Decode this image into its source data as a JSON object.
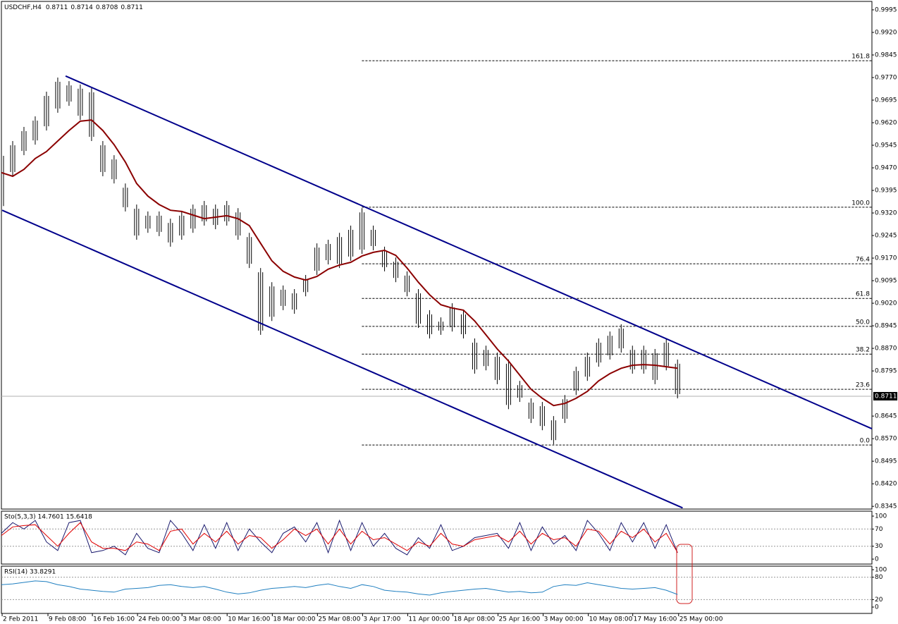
{
  "chart_data": [
    {
      "type": "hlc",
      "symbol": "USDCHF,H4",
      "last_ohlc": [
        0.8711,
        0.8714,
        0.8708,
        0.8711
      ],
      "color": "#000000",
      "x": [
        0,
        2,
        4,
        6,
        8,
        10,
        12,
        14,
        16,
        18,
        20,
        22,
        24,
        26,
        28,
        30,
        32,
        34,
        36,
        38,
        40,
        42,
        44,
        46,
        48,
        50,
        52,
        54,
        56,
        58,
        60,
        62,
        64,
        66,
        68,
        70,
        72,
        74,
        76,
        78,
        80,
        82,
        84,
        86,
        88,
        90,
        92,
        94,
        96,
        98,
        100,
        102,
        104,
        106,
        108,
        110,
        112,
        114,
        116,
        118,
        120
      ],
      "high": [
        0.9524,
        0.9559,
        0.9606,
        0.9641,
        0.9723,
        0.977,
        0.9758,
        0.9747,
        0.9735,
        0.9559,
        0.9512,
        0.9418,
        0.9348,
        0.9325,
        0.9325,
        0.9301,
        0.9325,
        0.9348,
        0.936,
        0.9348,
        0.936,
        0.9336,
        0.9254,
        0.9137,
        0.909,
        0.9079,
        0.9067,
        0.9114,
        0.9219,
        0.9231,
        0.9254,
        0.9278,
        0.9336,
        0.9278,
        0.9208,
        0.9172,
        0.9126,
        0.9067,
        0.8997,
        0.8973,
        0.902,
        0.8997,
        0.8903,
        0.8879,
        0.8856,
        0.8833,
        0.8762,
        0.8704,
        0.8692,
        0.8645,
        0.8715,
        0.8809,
        0.8856,
        0.8903,
        0.8926,
        0.895,
        0.8879,
        0.8879,
        0.8868,
        0.8903,
        0.8833
      ],
      "low": [
        0.9329,
        0.9442,
        0.9512,
        0.9547,
        0.9594,
        0.9653,
        0.9676,
        0.9629,
        0.9559,
        0.9442,
        0.9418,
        0.9325,
        0.9231,
        0.9254,
        0.9243,
        0.9208,
        0.9231,
        0.9254,
        0.9278,
        0.9266,
        0.9278,
        0.9231,
        0.9137,
        0.8915,
        0.8961,
        0.8997,
        0.8985,
        0.9043,
        0.9114,
        0.9149,
        0.9137,
        0.9161,
        0.9184,
        0.9196,
        0.9126,
        0.909,
        0.9043,
        0.8938,
        0.8903,
        0.8915,
        0.8926,
        0.8903,
        0.8786,
        0.8797,
        0.8751,
        0.8668,
        0.8692,
        0.8622,
        0.8598,
        0.8551,
        0.8622,
        0.8715,
        0.8762,
        0.8809,
        0.8833,
        0.8856,
        0.8786,
        0.8786,
        0.8751,
        0.8797,
        0.8704
      ],
      "moving_average": {
        "color": "#8b0000",
        "values": [
          0.9454,
          0.9442,
          0.9465,
          0.9501,
          0.9524,
          0.9559,
          0.9594,
          0.9625,
          0.9629,
          0.9594,
          0.9547,
          0.9489,
          0.9418,
          0.9376,
          0.9348,
          0.9329,
          0.9325,
          0.9313,
          0.9301,
          0.9306,
          0.9311,
          0.9301,
          0.9278,
          0.9219,
          0.9161,
          0.9126,
          0.9107,
          0.9097,
          0.9109,
          0.9133,
          0.9147,
          0.9156,
          0.9177,
          0.9189,
          0.9196,
          0.9179,
          0.9137,
          0.909,
          0.9048,
          0.9015,
          0.9004,
          0.8997,
          0.8961,
          0.8915,
          0.8868,
          0.8828,
          0.8781,
          0.8734,
          0.8704,
          0.868,
          0.8687,
          0.8704,
          0.8727,
          0.8762,
          0.8786,
          0.8804,
          0.8814,
          0.8816,
          0.8814,
          0.8809,
          0.8804
        ]
      },
      "trendlines": [
        {
          "color": "#00008b",
          "x": [
            11.39,
            154.5
          ],
          "y": [
            0.9775,
            0.8603
          ]
        },
        {
          "color": "#00008b",
          "x": [
            0.13,
            120.9
          ],
          "y": [
            0.9329,
            0.834
          ]
        }
      ],
      "fib_levels": {
        "x_start": 63.98,
        "levels": [
          {
            "label": "161.8",
            "price": 0.9826
          },
          {
            "label": "100.0",
            "price": 0.9339
          },
          {
            "label": "76.4",
            "price": 0.9151
          },
          {
            "label": "61.8",
            "price": 0.9036
          },
          {
            "label": "50.0",
            "price": 0.8943
          },
          {
            "label": "38.2",
            "price": 0.8851
          },
          {
            "label": "23.6",
            "price": 0.8734
          },
          {
            "label": "0.0",
            "price": 0.8549
          }
        ]
      },
      "last_price": 0.8711,
      "xlim": [
        0,
        154.5
      ],
      "ylim": [
        0.8336,
        1.0023
      ],
      "yticks": [
        0.9995,
        {
          "value": 0.992,
          "label": "0.9920"
        },
        0.9845,
        {
          "value": 0.977,
          "label": "0.9770"
        },
        0.9695,
        {
          "value": 0.962,
          "label": "0.9620"
        },
        0.9545,
        {
          "value": 0.947,
          "label": "0.9470"
        },
        0.9395,
        {
          "value": 0.932,
          "label": "0.9320"
        },
        0.9245,
        {
          "value": 0.917,
          "label": "0.9170"
        },
        0.9095,
        {
          "value": 0.902,
          "label": "0.9020"
        },
        0.8945,
        {
          "value": 0.887,
          "label": "0.8870"
        },
        0.8795,
        0.8645,
        {
          "value": 0.857,
          "label": "0.8570"
        },
        0.8495,
        {
          "value": 0.842,
          "label": "0.8420"
        },
        0.8345
      ]
    },
    {
      "type": "line",
      "label": "Sto(5,3,3) 14.7601 15.6418",
      "series": [
        {
          "color": "#1a1a6e",
          "values": [
            60,
            85,
            70,
            90,
            40,
            20,
            85,
            90,
            15,
            20,
            30,
            10,
            60,
            25,
            15,
            90,
            60,
            20,
            80,
            25,
            85,
            20,
            70,
            40,
            15,
            60,
            75,
            40,
            85,
            15,
            90,
            20,
            85,
            30,
            60,
            25,
            10,
            50,
            25,
            80,
            20,
            30,
            50,
            55,
            60,
            25,
            85,
            20,
            75,
            35,
            55,
            20,
            90,
            60,
            20,
            85,
            40,
            85,
            25,
            80,
            14.7601
          ]
        },
        {
          "color": "#e00000",
          "values": [
            55,
            75,
            78,
            80,
            55,
            30,
            60,
            85,
            40,
            25,
            25,
            20,
            40,
            35,
            20,
            65,
            70,
            35,
            60,
            40,
            65,
            35,
            55,
            50,
            25,
            45,
            70,
            55,
            70,
            35,
            70,
            35,
            65,
            45,
            50,
            35,
            20,
            40,
            30,
            60,
            35,
            30,
            45,
            50,
            55,
            40,
            65,
            35,
            60,
            45,
            50,
            30,
            70,
            65,
            35,
            65,
            50,
            70,
            40,
            60,
            15.6418
          ]
        }
      ],
      "xlim": [
        0,
        154.5
      ],
      "ylim": [
        -11.5,
        111.5
      ],
      "yticks": [
        100,
        70,
        30,
        0
      ]
    },
    {
      "type": "line",
      "label": "RSI(14) 33.8291",
      "series": [
        {
          "color": "#1f7fc0",
          "values": [
            60,
            62,
            66,
            70,
            68,
            60,
            55,
            48,
            45,
            42,
            40,
            48,
            50,
            52,
            58,
            60,
            55,
            52,
            55,
            48,
            40,
            35,
            38,
            45,
            50,
            52,
            55,
            52,
            58,
            62,
            55,
            50,
            60,
            55,
            45,
            42,
            40,
            35,
            32,
            38,
            42,
            45,
            48,
            50,
            45,
            40,
            42,
            38,
            40,
            55,
            60,
            58,
            65,
            60,
            55,
            50,
            48,
            50,
            52,
            45,
            33.8291
          ]
        }
      ],
      "xlim": [
        0,
        154.5
      ],
      "ylim": [
        -17,
        109.4
      ],
      "yticks": [
        100,
        80,
        20,
        0
      ],
      "xticks": [
        {
          "value": 0.13,
          "label": "2 Feb 2011"
        },
        {
          "value": 8.26,
          "label": "9 Feb 08:00"
        },
        {
          "value": 16.15,
          "label": "16 Feb 16:00"
        },
        {
          "value": 24.16,
          "label": "24 Feb 00:00"
        },
        {
          "value": 32.05,
          "label": "3 Mar 08:00"
        },
        {
          "value": 40.06,
          "label": "10 Mar 16:00"
        },
        {
          "value": 48.08,
          "label": "18 Mar 00:00"
        },
        {
          "value": 56.09,
          "label": "25 Mar 08:00"
        },
        {
          "value": 64.1,
          "label": "3 Apr 17:00"
        },
        {
          "value": 72.11,
          "label": "11 Apr 00:00"
        },
        {
          "value": 80.13,
          "label": "18 Apr 08:00"
        },
        {
          "value": 88.14,
          "label": "25 Apr 16:00"
        },
        {
          "value": 96.15,
          "label": "3 May 00:00"
        },
        {
          "value": 104.16,
          "label": "10 May 08:00"
        },
        {
          "value": 112.05,
          "label": "17 May 16:00"
        },
        {
          "value": 120.19,
          "label": "25 May 00:00"
        }
      ]
    }
  ]
}
